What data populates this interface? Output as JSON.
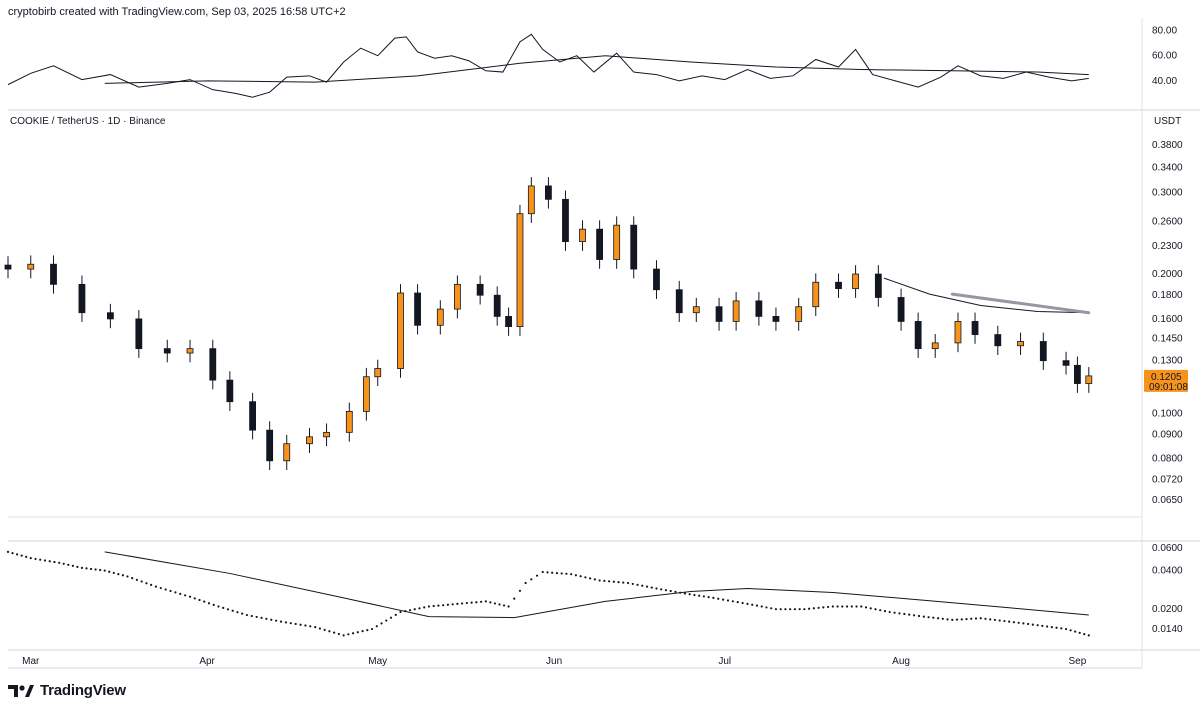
{
  "header": {
    "attribution": "cryptobirb created with TradingView.com, Sep 03, 2025 16:58 UTC+2"
  },
  "brand": {
    "name": "TradingView"
  },
  "chart_data": {
    "type": "candlestick",
    "title": "COOKIE / TetherUS · 1D · Binance",
    "currency": "USDT",
    "price_scale": "log",
    "price_ticks": [
      "0.3800",
      "0.3400",
      "0.3000",
      "0.2600",
      "0.2300",
      "0.2000",
      "0.1800",
      "0.1600",
      "0.1450",
      "0.1300",
      "0.1000",
      "0.0900",
      "0.0800",
      "0.0720",
      "0.0650"
    ],
    "last_price": {
      "value": "0.1205",
      "countdown": "09:01:08",
      "color": "#f7931a"
    },
    "month_labels": [
      "Mar",
      "Apr",
      "May",
      "Jun",
      "Jul",
      "Aug",
      "Sep"
    ],
    "candle_colors": {
      "up": "#f7931a",
      "down": "#131722"
    },
    "close_points": [
      {
        "d": "Feb 25",
        "c": 0.205
      },
      {
        "d": "Mar 01",
        "c": 0.21
      },
      {
        "d": "Mar 05",
        "c": 0.19
      },
      {
        "d": "Mar 10",
        "c": 0.165
      },
      {
        "d": "Mar 15",
        "c": 0.16
      },
      {
        "d": "Mar 20",
        "c": 0.138
      },
      {
        "d": "Mar 25",
        "c": 0.135
      },
      {
        "d": "Mar 29",
        "c": 0.138
      },
      {
        "d": "Apr 02",
        "c": 0.118
      },
      {
        "d": "Apr 05",
        "c": 0.106
      },
      {
        "d": "Apr 09",
        "c": 0.092
      },
      {
        "d": "Apr 12",
        "c": 0.079
      },
      {
        "d": "Apr 15",
        "c": 0.086
      },
      {
        "d": "Apr 19",
        "c": 0.089
      },
      {
        "d": "Apr 22",
        "c": 0.091
      },
      {
        "d": "Apr 26",
        "c": 0.101
      },
      {
        "d": "Apr 29",
        "c": 0.12
      },
      {
        "d": "May 01",
        "c": 0.125
      },
      {
        "d": "May 05",
        "c": 0.182
      },
      {
        "d": "May 08",
        "c": 0.155
      },
      {
        "d": "May 12",
        "c": 0.168
      },
      {
        "d": "May 15",
        "c": 0.19
      },
      {
        "d": "May 19",
        "c": 0.18
      },
      {
        "d": "May 22",
        "c": 0.162
      },
      {
        "d": "May 24",
        "c": 0.154
      },
      {
        "d": "May 26",
        "c": 0.27
      },
      {
        "d": "May 28",
        "c": 0.31
      },
      {
        "d": "May 31",
        "c": 0.29
      },
      {
        "d": "Jun 03",
        "c": 0.235
      },
      {
        "d": "Jun 06",
        "c": 0.25
      },
      {
        "d": "Jun 09",
        "c": 0.215
      },
      {
        "d": "Jun 12",
        "c": 0.255
      },
      {
        "d": "Jun 15",
        "c": 0.205
      },
      {
        "d": "Jun 19",
        "c": 0.185
      },
      {
        "d": "Jun 23",
        "c": 0.165
      },
      {
        "d": "Jun 26",
        "c": 0.17
      },
      {
        "d": "Jun 30",
        "c": 0.158
      },
      {
        "d": "Jul 03",
        "c": 0.175
      },
      {
        "d": "Jul 07",
        "c": 0.162
      },
      {
        "d": "Jul 10",
        "c": 0.158
      },
      {
        "d": "Jul 14",
        "c": 0.17
      },
      {
        "d": "Jul 17",
        "c": 0.192
      },
      {
        "d": "Jul 21",
        "c": 0.186
      },
      {
        "d": "Jul 24",
        "c": 0.2
      },
      {
        "d": "Jul 28",
        "c": 0.178
      },
      {
        "d": "Aug 01",
        "c": 0.158
      },
      {
        "d": "Aug 04",
        "c": 0.138
      },
      {
        "d": "Aug 07",
        "c": 0.142
      },
      {
        "d": "Aug 11",
        "c": 0.158
      },
      {
        "d": "Aug 14",
        "c": 0.148
      },
      {
        "d": "Aug 18",
        "c": 0.14
      },
      {
        "d": "Aug 22",
        "c": 0.143
      },
      {
        "d": "Aug 26",
        "c": 0.13
      },
      {
        "d": "Aug 30",
        "c": 0.127
      },
      {
        "d": "Sep 01",
        "c": 0.116
      },
      {
        "d": "Sep 03",
        "c": 0.1205
      }
    ],
    "price_ma": [
      {
        "d": "Jul 29",
        "v": 0.196
      },
      {
        "d": "Aug 06",
        "v": 0.181
      },
      {
        "d": "Aug 15",
        "v": 0.171
      },
      {
        "d": "Aug 25",
        "v": 0.166
      },
      {
        "d": "Sep 03",
        "v": 0.165
      }
    ],
    "trendline": {
      "from": {
        "d": "Aug 10",
        "v": 0.181
      },
      "to": {
        "d": "Sep 03",
        "v": 0.165
      }
    },
    "rsi": {
      "ticks": [
        "80.00",
        "60.00",
        "40.00"
      ],
      "ylim": [
        20,
        90
      ],
      "rsi_points": [
        {
          "d": "Feb 25",
          "v": 37
        },
        {
          "d": "Mar 01",
          "v": 46
        },
        {
          "d": "Mar 05",
          "v": 52
        },
        {
          "d": "Mar 10",
          "v": 41
        },
        {
          "d": "Mar 15",
          "v": 45
        },
        {
          "d": "Mar 20",
          "v": 35
        },
        {
          "d": "Mar 25",
          "v": 38
        },
        {
          "d": "Mar 29",
          "v": 41
        },
        {
          "d": "Apr 02",
          "v": 33
        },
        {
          "d": "Apr 06",
          "v": 30
        },
        {
          "d": "Apr 09",
          "v": 27
        },
        {
          "d": "Apr 12",
          "v": 31
        },
        {
          "d": "Apr 15",
          "v": 43
        },
        {
          "d": "Apr 19",
          "v": 44
        },
        {
          "d": "Apr 22",
          "v": 39
        },
        {
          "d": "Apr 25",
          "v": 55
        },
        {
          "d": "Apr 28",
          "v": 66
        },
        {
          "d": "May 01",
          "v": 60
        },
        {
          "d": "May 04",
          "v": 74
        },
        {
          "d": "May 06",
          "v": 75
        },
        {
          "d": "May 08",
          "v": 63
        },
        {
          "d": "May 11",
          "v": 58
        },
        {
          "d": "May 14",
          "v": 60
        },
        {
          "d": "May 17",
          "v": 56
        },
        {
          "d": "May 20",
          "v": 48
        },
        {
          "d": "May 23",
          "v": 47
        },
        {
          "d": "May 26",
          "v": 71
        },
        {
          "d": "May 28",
          "v": 77
        },
        {
          "d": "May 30",
          "v": 65
        },
        {
          "d": "Jun 02",
          "v": 55
        },
        {
          "d": "Jun 05",
          "v": 60
        },
        {
          "d": "Jun 08",
          "v": 47
        },
        {
          "d": "Jun 12",
          "v": 62
        },
        {
          "d": "Jun 15",
          "v": 47
        },
        {
          "d": "Jun 19",
          "v": 45
        },
        {
          "d": "Jun 23",
          "v": 40
        },
        {
          "d": "Jun 27",
          "v": 44
        },
        {
          "d": "Jul 01",
          "v": 41
        },
        {
          "d": "Jul 05",
          "v": 49
        },
        {
          "d": "Jul 09",
          "v": 42
        },
        {
          "d": "Jul 13",
          "v": 44
        },
        {
          "d": "Jul 17",
          "v": 57
        },
        {
          "d": "Jul 21",
          "v": 51
        },
        {
          "d": "Jul 24",
          "v": 65
        },
        {
          "d": "Jul 27",
          "v": 45
        },
        {
          "d": "Jul 31",
          "v": 40
        },
        {
          "d": "Aug 04",
          "v": 35
        },
        {
          "d": "Aug 08",
          "v": 43
        },
        {
          "d": "Aug 11",
          "v": 52
        },
        {
          "d": "Aug 15",
          "v": 44
        },
        {
          "d": "Aug 19",
          "v": 42
        },
        {
          "d": "Aug 23",
          "v": 47
        },
        {
          "d": "Aug 27",
          "v": 43
        },
        {
          "d": "Aug 31",
          "v": 40
        },
        {
          "d": "Sep 03",
          "v": 42
        }
      ],
      "ma_points": [
        {
          "d": "Mar 14",
          "v": 38
        },
        {
          "d": "Apr 01",
          "v": 40
        },
        {
          "d": "Apr 20",
          "v": 39
        },
        {
          "d": "May 08",
          "v": 44
        },
        {
          "d": "May 26",
          "v": 54
        },
        {
          "d": "Jun 10",
          "v": 60
        },
        {
          "d": "Jun 25",
          "v": 55
        },
        {
          "d": "Jul 10",
          "v": 51
        },
        {
          "d": "Jul 25",
          "v": 49
        },
        {
          "d": "Aug 10",
          "v": 48
        },
        {
          "d": "Aug 25",
          "v": 47
        },
        {
          "d": "Sep 03",
          "v": 45
        }
      ]
    },
    "lower_indicator": {
      "ticks": [
        "0.0600",
        "0.0400",
        "0.0200",
        "0.0140"
      ],
      "scale": "log",
      "dots": [
        {
          "d": "Feb 25",
          "v": 0.056
        },
        {
          "d": "Mar 01",
          "v": 0.05
        },
        {
          "d": "Mar 06",
          "v": 0.046
        },
        {
          "d": "Mar 10",
          "v": 0.042
        },
        {
          "d": "Mar 14",
          "v": 0.04
        },
        {
          "d": "Mar 18",
          "v": 0.036
        },
        {
          "d": "Mar 23",
          "v": 0.03
        },
        {
          "d": "Mar 29",
          "v": 0.025
        },
        {
          "d": "Apr 03",
          "v": 0.021
        },
        {
          "d": "Apr 08",
          "v": 0.018
        },
        {
          "d": "Apr 14",
          "v": 0.016
        },
        {
          "d": "Apr 20",
          "v": 0.0145
        },
        {
          "d": "Apr 25",
          "v": 0.0125
        },
        {
          "d": "Apr 30",
          "v": 0.014
        },
        {
          "d": "May 05",
          "v": 0.019
        },
        {
          "d": "May 10",
          "v": 0.021
        },
        {
          "d": "May 15",
          "v": 0.022
        },
        {
          "d": "May 20",
          "v": 0.023
        },
        {
          "d": "May 24",
          "v": 0.021
        },
        {
          "d": "May 27",
          "v": 0.032
        },
        {
          "d": "May 30",
          "v": 0.039
        },
        {
          "d": "Jun 04",
          "v": 0.0375
        },
        {
          "d": "Jun 09",
          "v": 0.0335
        },
        {
          "d": "Jun 14",
          "v": 0.032
        },
        {
          "d": "Jun 19",
          "v": 0.029
        },
        {
          "d": "Jun 24",
          "v": 0.0265
        },
        {
          "d": "Jun 29",
          "v": 0.0245
        },
        {
          "d": "Jul 05",
          "v": 0.022
        },
        {
          "d": "Jul 10",
          "v": 0.02
        },
        {
          "d": "Jul 15",
          "v": 0.02
        },
        {
          "d": "Jul 20",
          "v": 0.021
        },
        {
          "d": "Jul 25",
          "v": 0.021
        },
        {
          "d": "Jul 30",
          "v": 0.019
        },
        {
          "d": "Aug 05",
          "v": 0.0175
        },
        {
          "d": "Aug 10",
          "v": 0.0165
        },
        {
          "d": "Aug 15",
          "v": 0.017
        },
        {
          "d": "Aug 20",
          "v": 0.016
        },
        {
          "d": "Aug 25",
          "v": 0.015
        },
        {
          "d": "Aug 30",
          "v": 0.014
        },
        {
          "d": "Sep 03",
          "v": 0.0125
        }
      ],
      "ma_points": [
        {
          "d": "Mar 14",
          "v": 0.056
        },
        {
          "d": "Apr 05",
          "v": 0.038
        },
        {
          "d": "Apr 25",
          "v": 0.0245
        },
        {
          "d": "May 10",
          "v": 0.0175
        },
        {
          "d": "May 25",
          "v": 0.0172
        },
        {
          "d": "Jun 10",
          "v": 0.023
        },
        {
          "d": "Jun 25",
          "v": 0.0275
        },
        {
          "d": "Jul 05",
          "v": 0.029
        },
        {
          "d": "Jul 20",
          "v": 0.027
        },
        {
          "d": "Aug 05",
          "v": 0.0235
        },
        {
          "d": "Aug 20",
          "v": 0.0205
        },
        {
          "d": "Sep 03",
          "v": 0.018
        }
      ]
    }
  }
}
